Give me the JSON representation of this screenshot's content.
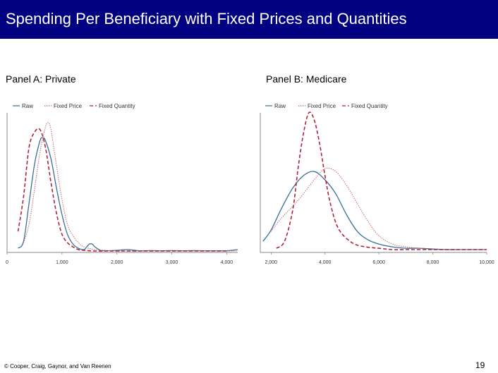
{
  "slide": {
    "title": "Spending Per Beneficiary with Fixed Prices and Quantities",
    "footer": "© Cooper, Craig, Gaynor, and Van Reenen",
    "page_number": "19"
  },
  "colors": {
    "title_bg": "#000080",
    "raw": "#3a6e9a",
    "fixed_price": "#c4646e",
    "fixed_quantity": "#b0233a"
  },
  "chart_data": [
    {
      "type": "line",
      "title": "Panel A: Private",
      "xlabel": "",
      "ylabel": "",
      "xlim": [
        0,
        4200
      ],
      "ylim": [
        0,
        1
      ],
      "x_ticks": [
        0,
        1000,
        2000,
        3000,
        4000
      ],
      "x_tick_labels": [
        "0",
        "1,000",
        "2,000",
        "3,000",
        "4,000"
      ],
      "legend": [
        "Raw",
        "Fixed Price",
        "Fixed Quantity"
      ],
      "legend_position": "top",
      "series": [
        {
          "name": "Raw",
          "x": [
            200,
            300,
            400,
            500,
            600,
            650,
            700,
            800,
            900,
            1000,
            1100,
            1200,
            1300,
            1400,
            1450,
            1500,
            1550,
            1600,
            1700,
            1800,
            2000,
            2200,
            2400,
            2600,
            2800,
            3000,
            3200,
            3400,
            3600,
            3800,
            4000,
            4200
          ],
          "y": [
            0.03,
            0.08,
            0.35,
            0.63,
            0.8,
            0.82,
            0.8,
            0.67,
            0.46,
            0.27,
            0.13,
            0.06,
            0.03,
            0.02,
            0.04,
            0.06,
            0.06,
            0.04,
            0.015,
            0.012,
            0.015,
            0.02,
            0.012,
            0.013,
            0.012,
            0.013,
            0.012,
            0.013,
            0.012,
            0.012,
            0.012,
            0.02
          ]
        },
        {
          "name": "Fixed Price",
          "x": [
            300,
            400,
            500,
            600,
            700,
            750,
            800,
            900,
            1000,
            1100,
            1200,
            1300,
            1400,
            1600,
            1800,
            2000,
            2500,
            3000,
            3500,
            4000,
            4200
          ],
          "y": [
            0.07,
            0.2,
            0.45,
            0.72,
            0.9,
            0.93,
            0.88,
            0.62,
            0.38,
            0.2,
            0.12,
            0.07,
            0.04,
            0.02,
            0.015,
            0.01,
            0.01,
            0.01,
            0.01,
            0.01,
            0.01
          ]
        },
        {
          "name": "Fixed Quantity",
          "x": [
            200,
            300,
            400,
            500,
            600,
            700,
            800,
            900,
            1000,
            1100,
            1200,
            1300,
            1400,
            1600,
            1800,
            2000,
            2500,
            3000,
            3500,
            4000
          ],
          "y": [
            0.15,
            0.4,
            0.75,
            0.86,
            0.88,
            0.75,
            0.5,
            0.28,
            0.13,
            0.07,
            0.04,
            0.02,
            0.015,
            0.01,
            0.01,
            0.01,
            0.01,
            0.01,
            0.01,
            0.01
          ]
        }
      ]
    },
    {
      "type": "line",
      "title": "Panel B: Medicare",
      "xlabel": "",
      "ylabel": "",
      "xlim": [
        1600,
        10000
      ],
      "ylim": [
        0,
        1
      ],
      "x_ticks": [
        2000,
        4000,
        6000,
        8000,
        10000
      ],
      "x_tick_labels": [
        "2,000",
        "4,000",
        "6,000",
        "8,000",
        "10,000"
      ],
      "legend": [
        "Raw",
        "Fixed Price",
        "Fixed Quantity"
      ],
      "legend_position": "top",
      "series": [
        {
          "name": "Raw",
          "x": [
            1700,
            2000,
            2400,
            2800,
            3200,
            3600,
            4000,
            4400,
            4800,
            5200,
            5600,
            6000,
            6500,
            7000,
            7500,
            8000,
            8500,
            9000,
            9500,
            10000
          ],
          "y": [
            0.08,
            0.16,
            0.32,
            0.46,
            0.55,
            0.58,
            0.52,
            0.42,
            0.27,
            0.15,
            0.09,
            0.06,
            0.04,
            0.03,
            0.03,
            0.025,
            0.02,
            0.02,
            0.02,
            0.02
          ]
        },
        {
          "name": "Fixed Price",
          "x": [
            2000,
            2400,
            2800,
            3200,
            3600,
            4000,
            4400,
            4800,
            5200,
            5600,
            6000,
            6500,
            7000,
            7500,
            8000,
            9000,
            10000
          ],
          "y": [
            0.15,
            0.25,
            0.33,
            0.42,
            0.52,
            0.6,
            0.58,
            0.48,
            0.35,
            0.22,
            0.12,
            0.06,
            0.04,
            0.03,
            0.02,
            0.02,
            0.02
          ]
        },
        {
          "name": "Fixed Quantity",
          "x": [
            2200,
            2500,
            2800,
            3000,
            3200,
            3400,
            3600,
            3800,
            4000,
            4200,
            4500,
            5000,
            5500,
            6000,
            6500,
            7000,
            8000,
            9000,
            10000
          ],
          "y": [
            0.03,
            0.08,
            0.3,
            0.6,
            0.85,
            1.0,
            0.95,
            0.78,
            0.55,
            0.35,
            0.17,
            0.07,
            0.04,
            0.03,
            0.02,
            0.02,
            0.02,
            0.02,
            0.02
          ]
        }
      ]
    }
  ]
}
